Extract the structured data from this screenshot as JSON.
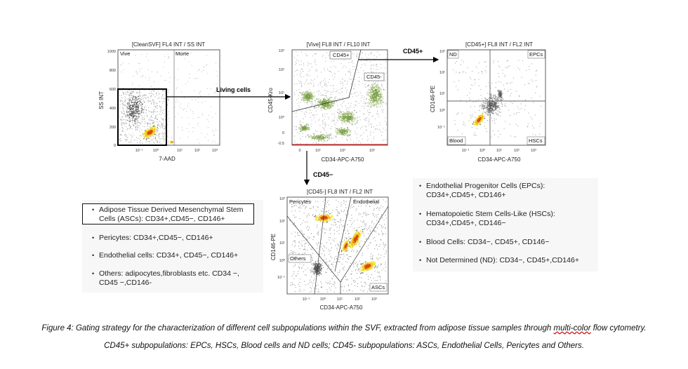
{
  "plots": {
    "p1": {
      "title": "[CleanSVF] FL4 INT / SS INT",
      "xlabel": "7-AAD",
      "ylabel": "SS INT",
      "yticks": [
        "1000",
        "800",
        "600",
        "400",
        "200",
        "0"
      ],
      "xticks": [
        "10⁻¹",
        "10⁰",
        "10¹",
        "10²",
        "10³"
      ],
      "gates": [
        "Vive",
        "Morte"
      ]
    },
    "p2": {
      "title": "[Vive] FL8 INT / FL10 INT",
      "xlabel": "CD34-APC-A750",
      "ylabel": "CD45-Kro",
      "yticks": [
        "10³",
        "10²",
        "10¹",
        "10⁰",
        "0",
        "-0.5"
      ],
      "xticks": [
        "0",
        "10¹",
        "10²",
        "10³"
      ],
      "gates": [
        "CD45+",
        "CD45-"
      ]
    },
    "p3": {
      "title": "[CD45+] FL8 INT / FL2 INT",
      "xlabel": "CD34-APC-A750",
      "ylabel": "CD146-PE",
      "yticks": [
        "10³",
        "10²",
        "10¹",
        "10⁰",
        "10⁻¹"
      ],
      "xticks": [
        "10⁻¹",
        "10⁰",
        "10¹",
        "10²",
        "10³"
      ],
      "gates": [
        "ND",
        "EPCs",
        "Blood",
        "HSCs"
      ]
    },
    "p4": {
      "title": "[CD45-] FL8 INT / FL2 INT",
      "xlabel": "CD34-APC-A750",
      "ylabel": "CD146-PE",
      "yticks": [
        "10³",
        "10²",
        "10¹",
        "10⁰",
        "10⁻¹"
      ],
      "xticks": [
        "10⁻¹",
        "10⁰",
        "10¹",
        "10²",
        "10³"
      ],
      "gates": [
        "Pericytes",
        "Endothelial",
        "Others",
        "ASCs"
      ]
    }
  },
  "arrows": {
    "living": "Living cells",
    "cd45pos": "CD45+",
    "cd45neg": "CD45−"
  },
  "legend_left": [
    {
      "bullet": "•",
      "line1": "Adipose Tissue  Derived Mesenchymal Stem",
      "line2": "Cells (ASCs): CD34+,CD45−, CD146+"
    },
    {
      "bullet": "•",
      "line1": "Pericytes: CD34+,CD45−, CD146+",
      "line2": ""
    },
    {
      "bullet": "•",
      "line1": "Endothelial cells: CD34+, CD45−, CD146+",
      "line2": ""
    },
    {
      "bullet": "•",
      "line1": "Others: adipocytes,fibroblasts etc. CD34 −,",
      "line2": "CD45 −,CD146-"
    }
  ],
  "legend_right": [
    {
      "bullet": "•",
      "line1": "Endothelial Progenitor Cells (EPCs):",
      "line2": "CD34+,CD45+, CD146+"
    },
    {
      "bullet": "•",
      "line1": "Hematopoietic Stem Cells-Like (HSCs):",
      "line2": "CD34+,CD45+, CD146−"
    },
    {
      "bullet": "•",
      "line1": "Blood Cells: CD34−, CD45+, CD146−",
      "line2": ""
    },
    {
      "bullet": "•",
      "line1": "Not Determined (ND): CD34−, CD45+,CD146+",
      "line2": ""
    }
  ],
  "caption": {
    "line1_a": "Figure 4: Gating strategy for the characterization of different cell subpopulations within the SVF, extracted from adipose tissue samples through ",
    "line1_b": "multi-color",
    "line1_c": " flow cytometry.",
    "line2": "CD45+ subpopulations: EPCs, HSCs, Blood cells and ND cells; CD45- subpopulations: ASCs, Endothelial Cells, Pericytes and Others."
  }
}
